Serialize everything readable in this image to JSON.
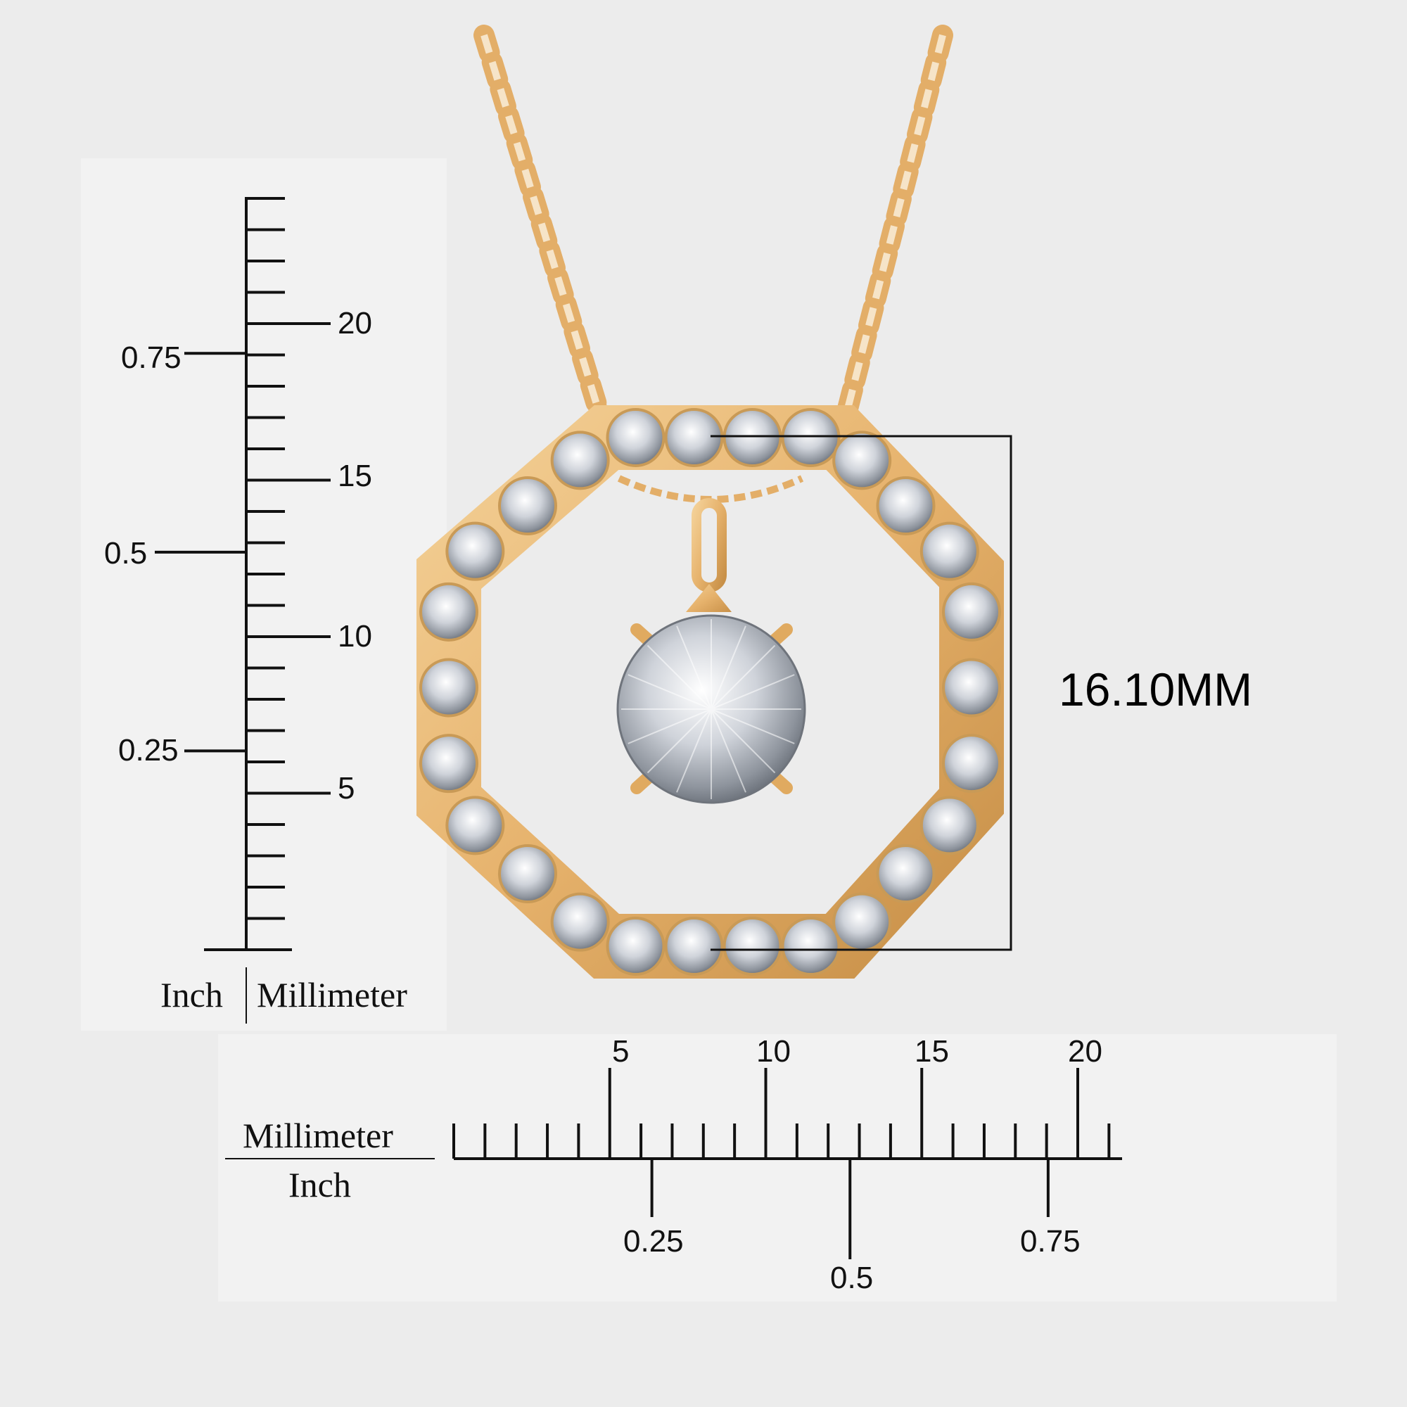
{
  "pendant": {
    "dimension_label": "16.10MM",
    "metal_color": "#e8b872",
    "metal_dark": "#b8843e",
    "stone_color": "#d8dce2"
  },
  "vertical_ruler": {
    "mm_labels": [
      "20",
      "15",
      "10",
      "5"
    ],
    "inch_labels": [
      "0.75",
      "0.5",
      "0.25"
    ],
    "unit_left": "Inch",
    "unit_right": "Millimeter"
  },
  "horizontal_ruler": {
    "mm_labels": [
      "5",
      "10",
      "15",
      "20"
    ],
    "inch_labels": [
      "0.25",
      "0.5",
      "0.75"
    ],
    "unit_top": "Millimeter",
    "unit_bottom": "Inch"
  }
}
